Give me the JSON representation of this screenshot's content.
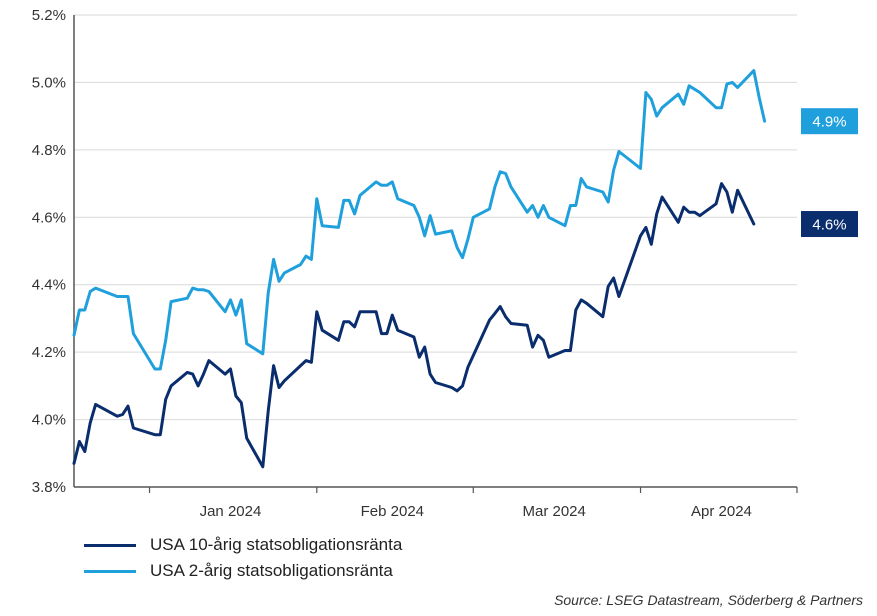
{
  "chart_data": {
    "type": "line",
    "title": "",
    "xlabel": "",
    "ylabel": "",
    "ylim": [
      3.8,
      5.2
    ],
    "y_ticks": [
      3.8,
      4.0,
      4.2,
      4.4,
      4.6,
      4.8,
      5.0,
      5.2
    ],
    "y_tick_labels": [
      "3.8%",
      "4.0%",
      "4.2%",
      "4.4%",
      "4.6%",
      "4.8%",
      "5.0%",
      "5.2%"
    ],
    "x_range": [
      "2023-12-18",
      "2024-04-30"
    ],
    "x_tick_dates": [
      "2024-01-01",
      "2024-02-01",
      "2024-03-01",
      "2024-04-01",
      "2024-04-30"
    ],
    "month_labels": [
      {
        "date": "2024-01-16",
        "label": "Jan 2024"
      },
      {
        "date": "2024-02-15",
        "label": "Feb 2024"
      },
      {
        "date": "2024-03-16",
        "label": "Mar 2024"
      },
      {
        "date": "2024-04-16",
        "label": "Apr 2024"
      }
    ],
    "grid": "horizontal",
    "legend_position": "bottom-left",
    "series": [
      {
        "name": "USA 10-årig statsobligationsränta",
        "color": "#0a2d6e",
        "end_label": "4.6%",
        "points": [
          [
            "2023-12-18",
            3.87
          ],
          [
            "2023-12-19",
            3.935
          ],
          [
            "2023-12-20",
            3.905
          ],
          [
            "2023-12-21",
            3.99
          ],
          [
            "2023-12-22",
            4.045
          ],
          [
            "2023-12-26",
            4.01
          ],
          [
            "2023-12-27",
            4.015
          ],
          [
            "2023-12-28",
            4.04
          ],
          [
            "2023-12-29",
            3.975
          ],
          [
            "2024-01-02",
            3.955
          ],
          [
            "2024-01-03",
            3.955
          ],
          [
            "2024-01-04",
            4.06
          ],
          [
            "2024-01-05",
            4.1
          ],
          [
            "2024-01-08",
            4.14
          ],
          [
            "2024-01-09",
            4.135
          ],
          [
            "2024-01-10",
            4.1
          ],
          [
            "2024-01-11",
            4.135
          ],
          [
            "2024-01-12",
            4.175
          ],
          [
            "2024-01-15",
            4.135
          ],
          [
            "2024-01-16",
            4.15
          ],
          [
            "2024-01-17",
            4.07
          ],
          [
            "2024-01-18",
            4.05
          ],
          [
            "2024-01-19",
            3.945
          ],
          [
            "2024-01-22",
            3.86
          ],
          [
            "2024-01-23",
            4.025
          ],
          [
            "2024-01-24",
            4.16
          ],
          [
            "2024-01-25",
            4.095
          ],
          [
            "2024-01-26",
            4.115
          ],
          [
            "2024-01-29",
            4.16
          ],
          [
            "2024-01-30",
            4.175
          ],
          [
            "2024-01-31",
            4.17
          ],
          [
            "2024-02-01",
            4.32
          ],
          [
            "2024-02-02",
            4.265
          ],
          [
            "2024-02-05",
            4.235
          ],
          [
            "2024-02-06",
            4.29
          ],
          [
            "2024-02-07",
            4.29
          ],
          [
            "2024-02-08",
            4.275
          ],
          [
            "2024-02-09",
            4.32
          ],
          [
            "2024-02-12",
            4.32
          ],
          [
            "2024-02-13",
            4.255
          ],
          [
            "2024-02-14",
            4.255
          ],
          [
            "2024-02-15",
            4.31
          ],
          [
            "2024-02-16",
            4.265
          ],
          [
            "2024-02-19",
            4.245
          ],
          [
            "2024-02-20",
            4.185
          ],
          [
            "2024-02-21",
            4.215
          ],
          [
            "2024-02-22",
            4.135
          ],
          [
            "2024-02-23",
            4.11
          ],
          [
            "2024-02-26",
            4.095
          ],
          [
            "2024-02-27",
            4.085
          ],
          [
            "2024-02-28",
            4.1
          ],
          [
            "2024-02-29",
            4.155
          ],
          [
            "2024-03-01",
            4.19
          ],
          [
            "2024-03-04",
            4.295
          ],
          [
            "2024-03-05",
            4.315
          ],
          [
            "2024-03-06",
            4.335
          ],
          [
            "2024-03-07",
            4.305
          ],
          [
            "2024-03-08",
            4.285
          ],
          [
            "2024-03-11",
            4.28
          ],
          [
            "2024-03-12",
            4.215
          ],
          [
            "2024-03-13",
            4.25
          ],
          [
            "2024-03-14",
            4.235
          ],
          [
            "2024-03-15",
            4.185
          ],
          [
            "2024-03-18",
            4.205
          ],
          [
            "2024-03-19",
            4.205
          ],
          [
            "2024-03-20",
            4.325
          ],
          [
            "2024-03-21",
            4.355
          ],
          [
            "2024-03-22",
            4.345
          ],
          [
            "2024-03-25",
            4.305
          ],
          [
            "2024-03-26",
            4.395
          ],
          [
            "2024-03-27",
            4.42
          ],
          [
            "2024-03-28",
            4.365
          ],
          [
            "2024-04-01",
            4.545
          ],
          [
            "2024-04-02",
            4.57
          ],
          [
            "2024-04-03",
            4.52
          ],
          [
            "2024-04-04",
            4.61
          ],
          [
            "2024-04-05",
            4.66
          ],
          [
            "2024-04-08",
            4.585
          ],
          [
            "2024-04-09",
            4.63
          ],
          [
            "2024-04-10",
            4.615
          ],
          [
            "2024-04-11",
            4.615
          ],
          [
            "2024-04-12",
            4.605
          ],
          [
            "2024-04-15",
            4.64
          ],
          [
            "2024-04-16",
            4.7
          ],
          [
            "2024-04-17",
            4.675
          ],
          [
            "2024-04-18",
            4.615
          ],
          [
            "2024-04-19",
            4.68
          ],
          [
            "2024-04-22",
            4.58
          ]
        ]
      },
      {
        "name": "USA 2-årig statsobligationsränta",
        "color": "#1fa0dc",
        "end_label": "4.9%",
        "points": [
          [
            "2023-12-18",
            4.25
          ],
          [
            "2023-12-19",
            4.325
          ],
          [
            "2023-12-20",
            4.325
          ],
          [
            "2023-12-21",
            4.38
          ],
          [
            "2023-12-22",
            4.39
          ],
          [
            "2023-12-26",
            4.365
          ],
          [
            "2023-12-27",
            4.365
          ],
          [
            "2023-12-28",
            4.365
          ],
          [
            "2023-12-29",
            4.255
          ],
          [
            "2024-01-02",
            4.15
          ],
          [
            "2024-01-03",
            4.15
          ],
          [
            "2024-01-04",
            4.235
          ],
          [
            "2024-01-05",
            4.35
          ],
          [
            "2024-01-08",
            4.36
          ],
          [
            "2024-01-09",
            4.39
          ],
          [
            "2024-01-10",
            4.385
          ],
          [
            "2024-01-11",
            4.385
          ],
          [
            "2024-01-12",
            4.38
          ],
          [
            "2024-01-15",
            4.32
          ],
          [
            "2024-01-16",
            4.355
          ],
          [
            "2024-01-17",
            4.31
          ],
          [
            "2024-01-18",
            4.355
          ],
          [
            "2024-01-19",
            4.225
          ],
          [
            "2024-01-22",
            4.195
          ],
          [
            "2024-01-23",
            4.375
          ],
          [
            "2024-01-24",
            4.475
          ],
          [
            "2024-01-25",
            4.41
          ],
          [
            "2024-01-26",
            4.435
          ],
          [
            "2024-01-29",
            4.46
          ],
          [
            "2024-01-30",
            4.485
          ],
          [
            "2024-01-31",
            4.475
          ],
          [
            "2024-02-01",
            4.655
          ],
          [
            "2024-02-02",
            4.575
          ],
          [
            "2024-02-05",
            4.57
          ],
          [
            "2024-02-06",
            4.65
          ],
          [
            "2024-02-07",
            4.65
          ],
          [
            "2024-02-08",
            4.61
          ],
          [
            "2024-02-09",
            4.665
          ],
          [
            "2024-02-12",
            4.705
          ],
          [
            "2024-02-13",
            4.695
          ],
          [
            "2024-02-14",
            4.695
          ],
          [
            "2024-02-15",
            4.705
          ],
          [
            "2024-02-16",
            4.655
          ],
          [
            "2024-02-19",
            4.635
          ],
          [
            "2024-02-20",
            4.6
          ],
          [
            "2024-02-21",
            4.545
          ],
          [
            "2024-02-22",
            4.605
          ],
          [
            "2024-02-23",
            4.55
          ],
          [
            "2024-02-26",
            4.56
          ],
          [
            "2024-02-27",
            4.51
          ],
          [
            "2024-02-28",
            4.48
          ],
          [
            "2024-02-29",
            4.535
          ],
          [
            "2024-03-01",
            4.6
          ],
          [
            "2024-03-04",
            4.625
          ],
          [
            "2024-03-05",
            4.69
          ],
          [
            "2024-03-06",
            4.735
          ],
          [
            "2024-03-07",
            4.73
          ],
          [
            "2024-03-08",
            4.69
          ],
          [
            "2024-03-11",
            4.615
          ],
          [
            "2024-03-12",
            4.635
          ],
          [
            "2024-03-13",
            4.6
          ],
          [
            "2024-03-14",
            4.635
          ],
          [
            "2024-03-15",
            4.6
          ],
          [
            "2024-03-18",
            4.575
          ],
          [
            "2024-03-19",
            4.635
          ],
          [
            "2024-03-20",
            4.635
          ],
          [
            "2024-03-21",
            4.715
          ],
          [
            "2024-03-22",
            4.69
          ],
          [
            "2024-03-25",
            4.675
          ],
          [
            "2024-03-26",
            4.645
          ],
          [
            "2024-03-27",
            4.74
          ],
          [
            "2024-03-28",
            4.795
          ],
          [
            "2024-04-01",
            4.745
          ],
          [
            "2024-04-02",
            4.97
          ],
          [
            "2024-04-03",
            4.95
          ],
          [
            "2024-04-04",
            4.9
          ],
          [
            "2024-04-05",
            4.925
          ],
          [
            "2024-04-08",
            4.965
          ],
          [
            "2024-04-09",
            4.935
          ],
          [
            "2024-04-10",
            4.99
          ],
          [
            "2024-04-11",
            4.98
          ],
          [
            "2024-04-12",
            4.97
          ],
          [
            "2024-04-15",
            4.925
          ],
          [
            "2024-04-16",
            4.925
          ],
          [
            "2024-04-17",
            4.995
          ],
          [
            "2024-04-18",
            5.0
          ],
          [
            "2024-04-19",
            4.985
          ],
          [
            "2024-04-22",
            5.035
          ],
          [
            "2024-04-23",
            4.955
          ],
          [
            "2024-04-24",
            4.885
          ]
        ]
      }
    ]
  },
  "source": "Source: LSEG Datastream, Söderberg & Partners"
}
